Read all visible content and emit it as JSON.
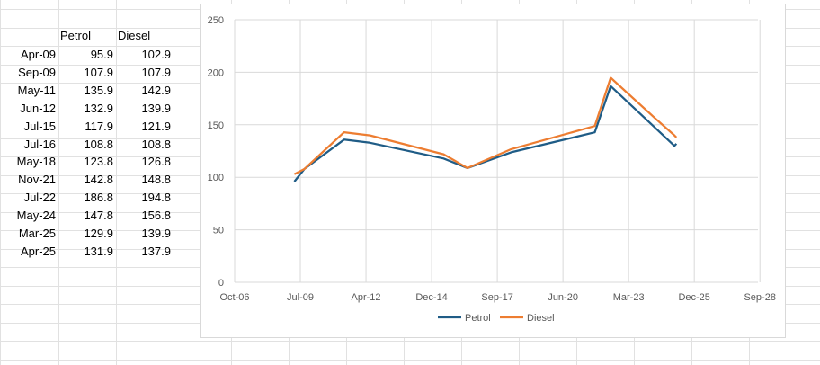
{
  "sheet": {
    "headers": [
      "Petrol",
      "Diesel"
    ],
    "rows": [
      {
        "date": "Apr-09",
        "petrol": "95.9",
        "diesel": "102.9"
      },
      {
        "date": "Sep-09",
        "petrol": "107.9",
        "diesel": "107.9"
      },
      {
        "date": "May-11",
        "petrol": "135.9",
        "diesel": "142.9"
      },
      {
        "date": "Jun-12",
        "petrol": "132.9",
        "diesel": "139.9"
      },
      {
        "date": "Jul-15",
        "petrol": "117.9",
        "diesel": "121.9"
      },
      {
        "date": "Jul-16",
        "petrol": "108.8",
        "diesel": "108.8"
      },
      {
        "date": "May-18",
        "petrol": "123.8",
        "diesel": "126.8"
      },
      {
        "date": "Nov-21",
        "petrol": "142.8",
        "diesel": "148.8"
      },
      {
        "date": "Jul-22",
        "petrol": "186.8",
        "diesel": "194.8"
      },
      {
        "date": "May-24",
        "petrol": "147.8",
        "diesel": "156.8"
      },
      {
        "date": "Mar-25",
        "petrol": "129.9",
        "diesel": "139.9"
      },
      {
        "date": "Apr-25",
        "petrol": "131.9",
        "diesel": "137.9"
      }
    ]
  },
  "chart_data": {
    "type": "line",
    "title": "",
    "xlabel": "",
    "ylabel": "",
    "x": [
      "2009-04",
      "2009-09",
      "2011-05",
      "2012-06",
      "2015-07",
      "2016-07",
      "2018-05",
      "2021-11",
      "2022-07",
      "2024-05",
      "2025-03",
      "2025-04"
    ],
    "series": [
      {
        "name": "Petrol",
        "color": "#1f5c86",
        "values": [
          95.9,
          107.9,
          135.9,
          132.9,
          117.9,
          108.8,
          123.8,
          142.8,
          186.8,
          147.8,
          129.9,
          131.9
        ]
      },
      {
        "name": "Diesel",
        "color": "#ed7d31",
        "values": [
          102.9,
          107.9,
          142.9,
          139.9,
          121.9,
          108.8,
          126.8,
          148.8,
          194.8,
          156.8,
          139.9,
          137.9
        ]
      }
    ],
    "xlim": [
      "2006-10",
      "2028-09"
    ],
    "x_ticks": [
      "Oct-06",
      "Jul-09",
      "Apr-12",
      "Dec-14",
      "Sep-17",
      "Jun-20",
      "Mar-23",
      "Dec-25",
      "Sep-28"
    ],
    "ylim": [
      0,
      250
    ],
    "y_ticks": [
      "0",
      "50",
      "100",
      "150",
      "200",
      "250"
    ],
    "grid": true,
    "legend_position": "bottom"
  }
}
